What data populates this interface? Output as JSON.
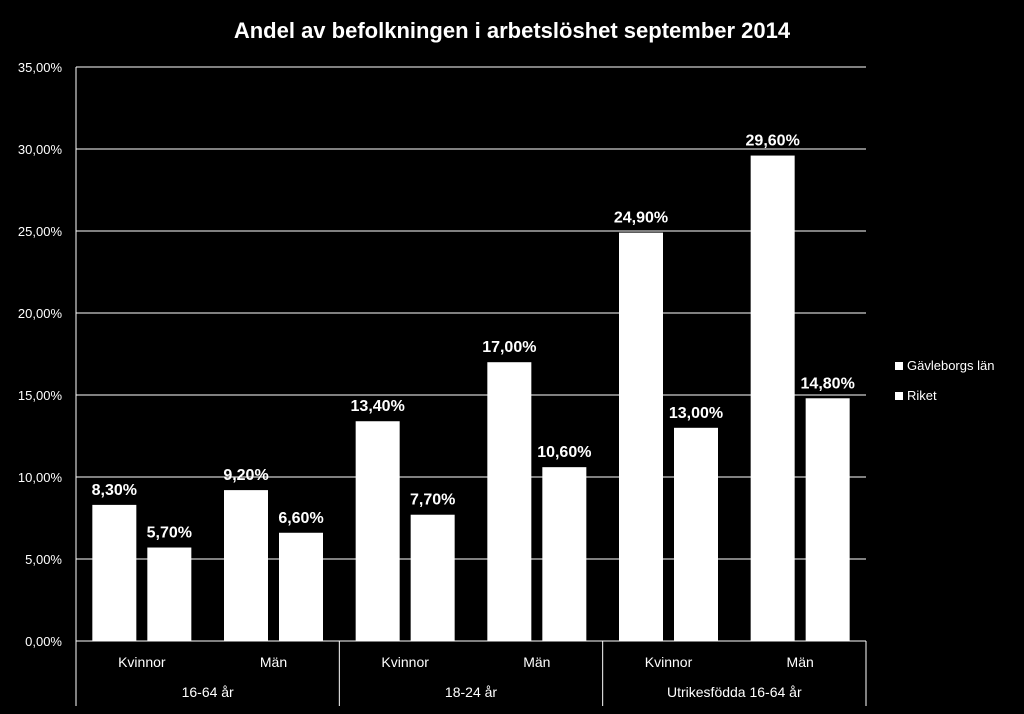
{
  "chart_data": {
    "type": "bar",
    "title": "Andel av befolkningen i arbetslöshet september 2014",
    "ylim": [
      0,
      35
    ],
    "yticks": [
      0,
      5,
      10,
      15,
      20,
      25,
      30,
      35
    ],
    "ytick_labels": [
      "0,00%",
      "5,00%",
      "10,00%",
      "15,00%",
      "20,00%",
      "25,00%",
      "30,00%",
      "35,00%"
    ],
    "grid": true,
    "legend_position": "right",
    "groups": [
      {
        "label": "16-64 år",
        "categories": [
          "Kvinnor",
          "Män"
        ]
      },
      {
        "label": "18-24 år",
        "categories": [
          "Kvinnor",
          "Män"
        ]
      },
      {
        "label": "Utrikesfödda 16-64 år",
        "categories": [
          "Kvinnor",
          "Män"
        ]
      }
    ],
    "categories": [
      "Kvinnor",
      "Män",
      "Kvinnor",
      "Män",
      "Kvinnor",
      "Män"
    ],
    "series": [
      {
        "name": "Gävleborgs län",
        "values": [
          8.3,
          9.2,
          13.4,
          17.0,
          24.9,
          29.6
        ],
        "labels": [
          "8,30%",
          "9,20%",
          "13,40%",
          "17,00%",
          "24,90%",
          "29,60%"
        ]
      },
      {
        "name": "Riket",
        "values": [
          5.7,
          6.6,
          7.7,
          10.6,
          13.0,
          14.8
        ],
        "labels": [
          "5,70%",
          "6,60%",
          "7,70%",
          "10,60%",
          "13,00%",
          "14,80%"
        ]
      }
    ],
    "colors": {
      "background": "#000000",
      "bars": "#ffffff",
      "grid": "#ffffff",
      "text": "#ffffff"
    }
  }
}
